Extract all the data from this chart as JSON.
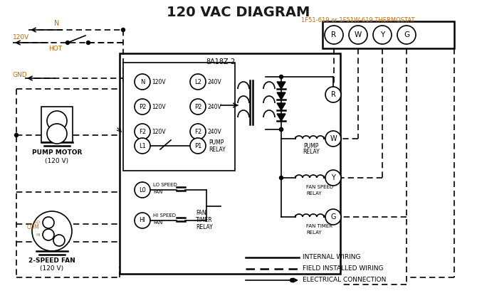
{
  "title": "120 VAC DIAGRAM",
  "title_color": "#1a1a1a",
  "title_fontsize": 14,
  "bg_color": "#ffffff",
  "box_label": "8A18Z-2",
  "thermostat_label": "1F51-619 or 1F51W-619 THERMOSTAT",
  "orange_color": "#cc6600",
  "black_color": "#000000",
  "legend_internal": "INTERNAL WIRING",
  "legend_field": "FIELD INSTALLED WIRING",
  "legend_elec": "ELECTRICAL CONNECTION"
}
